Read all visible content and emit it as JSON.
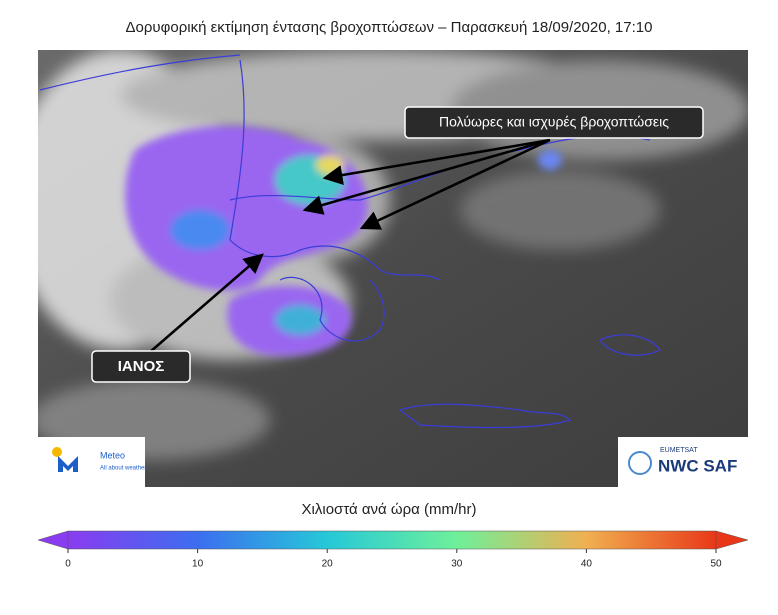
{
  "title": "Δορυφορική εκτίμηση έντασης βροχοπτώσεων – Παρασκευή 18/09/2020, 17:10",
  "map": {
    "annotations": [
      "Πολύωρες και ισχυρές βροχοπτώσεις",
      "ΙΑΝΟΣ"
    ],
    "logos": {
      "left": {
        "name": "Meteo",
        "tagline": "All about weather"
      },
      "right": {
        "org": "EUMETSAT",
        "name": "NWC SAF"
      }
    }
  },
  "colorbar": {
    "label": "Χιλιοστά ανά ώρα (mm/hr)",
    "lim": [
      0,
      50
    ],
    "ticks": [
      0,
      10,
      20,
      30,
      40,
      50
    ]
  }
}
